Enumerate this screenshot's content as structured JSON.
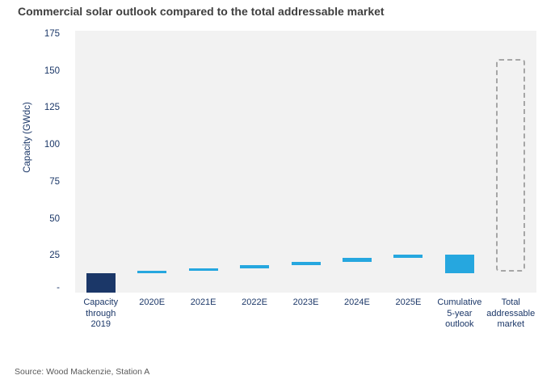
{
  "header": {
    "title": "Commercial solar outlook compared to the total addressable market"
  },
  "footer": {
    "source": "Source: Wood Mackenzie, Station A"
  },
  "chart_data": {
    "type": "bar",
    "subtype": "floating-waterfall",
    "title": "Commercial solar outlook compared to the total addressable market",
    "xlabel": "",
    "ylabel": "Capacity (GWdc)",
    "ylim": [
      0,
      177
    ],
    "grid": false,
    "legend": "none",
    "plot_background": "#f2f2f2",
    "colors": {
      "installed": "#1b3768",
      "forecast": "#26a7df",
      "tam_outline": "#a6a6a6"
    },
    "yticks": [
      {
        "value": 175,
        "label": "175"
      },
      {
        "value": 150,
        "label": "150"
      },
      {
        "value": 125,
        "label": "125"
      },
      {
        "value": 100,
        "label": "100"
      },
      {
        "value": 75,
        "label": "75"
      },
      {
        "value": 50,
        "label": "50"
      },
      {
        "value": 25,
        "label": "25"
      },
      {
        "value": 0,
        "label": "-",
        "dy": -6
      }
    ],
    "bars": [
      {
        "label_lines": [
          "Capacity",
          "through",
          "2019"
        ],
        "from": 0,
        "to": 13,
        "fill": "installed",
        "style": "solid"
      },
      {
        "label_lines": [
          "2020E"
        ],
        "from": 13,
        "to": 14.6,
        "fill": "forecast",
        "style": "solid"
      },
      {
        "label_lines": [
          "2021E"
        ],
        "from": 14.6,
        "to": 16.6,
        "fill": "forecast",
        "style": "solid"
      },
      {
        "label_lines": [
          "2022E"
        ],
        "from": 16.6,
        "to": 18.6,
        "fill": "forecast",
        "style": "solid"
      },
      {
        "label_lines": [
          "2023E"
        ],
        "from": 18.6,
        "to": 21.0,
        "fill": "forecast",
        "style": "solid"
      },
      {
        "label_lines": [
          "2024E"
        ],
        "from": 21.0,
        "to": 23.3,
        "fill": "forecast",
        "style": "solid"
      },
      {
        "label_lines": [
          "2025E"
        ],
        "from": 23.3,
        "to": 25.7,
        "fill": "forecast",
        "style": "solid"
      },
      {
        "label_lines": [
          "Cumulative",
          "5-year",
          "outlook"
        ],
        "from": 13,
        "to": 25.7,
        "fill": "forecast",
        "style": "solid"
      },
      {
        "label_lines": [
          "Total",
          "addressable",
          "market"
        ],
        "from": 14,
        "to": 158,
        "fill": "none",
        "style": "dashed"
      }
    ]
  }
}
